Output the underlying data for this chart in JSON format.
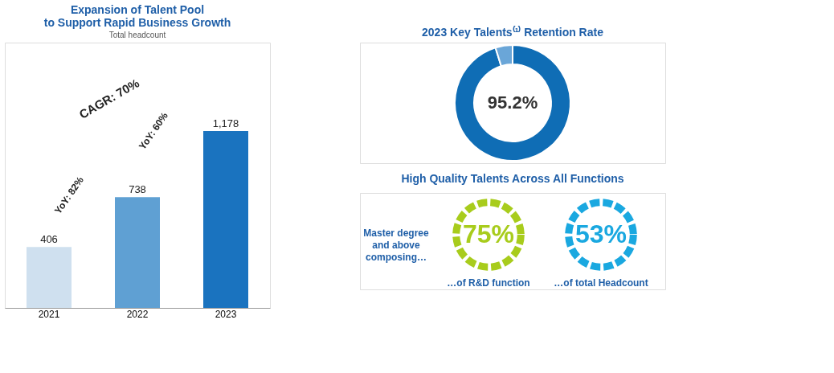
{
  "chart_data": [
    {
      "type": "bar",
      "title": [
        "Expansion of Talent Pool",
        "to Support Rapid Business Growth"
      ],
      "subtitle": "Total headcount",
      "categories": [
        "2021",
        "2022",
        "2023"
      ],
      "values": [
        406,
        738,
        1178
      ],
      "colors": [
        "#cfe0ef",
        "#5fa0d3",
        "#1a73bf"
      ],
      "value_labels": [
        "406",
        "738",
        "1,178"
      ],
      "annotations": [
        "CAGR: 70%",
        "YoY: 82%",
        "YoY: 60%"
      ]
    },
    {
      "type": "donut",
      "title": "2023 Key Talents⁽¹⁾ Retention Rate",
      "categories": [
        null,
        null
      ],
      "values": [
        95.2,
        4.8
      ],
      "colors": [
        "#0f6db5",
        "#6aa6d8"
      ],
      "value_labels": [
        "95.2%",
        null
      ]
    },
    {
      "type": "other",
      "title": "High Quality Talents Across All Functions",
      "annotations": [
        "Master degree and above composing…",
        "75%",
        "…of R&D function",
        "53%",
        "…of total Headcount"
      ],
      "colors": [
        "#a8cc1c",
        "#1aa8e0"
      ]
    }
  ]
}
